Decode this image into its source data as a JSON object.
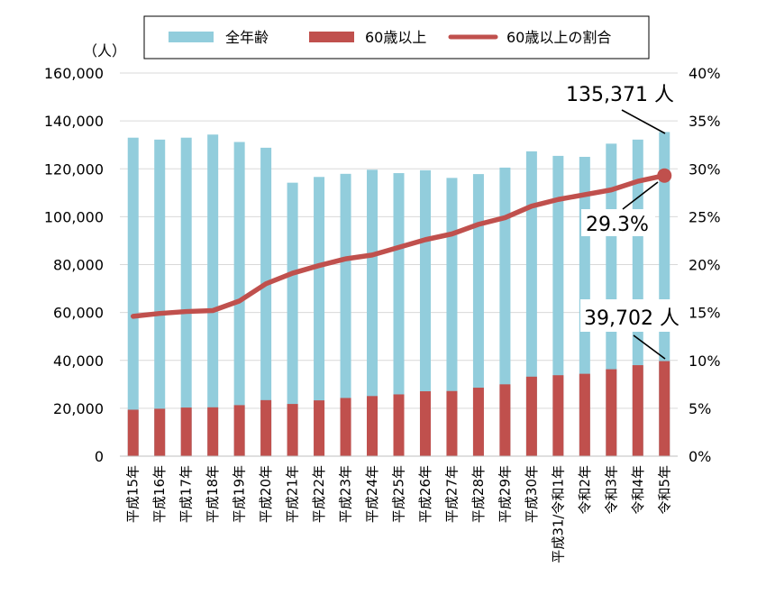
{
  "chart_data": {
    "type": "bar",
    "categories": [
      "平成15年",
      "平成16年",
      "平成17年",
      "平成18年",
      "平成19年",
      "平成20年",
      "平成21年",
      "平成22年",
      "平成23年",
      "平成24年",
      "平成25年",
      "平成26年",
      "平成27年",
      "平成28年",
      "平成29年",
      "平成30年",
      "平成31/令和1年",
      "令和2年",
      "令和3年",
      "令和4年",
      "令和5年"
    ],
    "y_unit": "（人）",
    "ylim": [
      0,
      160000
    ],
    "y_ticks": [
      "0",
      "20,000",
      "40,000",
      "60,000",
      "80,000",
      "100,000",
      "120,000",
      "140,000",
      "160,000"
    ],
    "y2lim": [
      0,
      40
    ],
    "y2_ticks": [
      "0%",
      "5%",
      "10%",
      "15%",
      "20%",
      "25%",
      "30%",
      "35%",
      "40%"
    ],
    "legend_position": "top",
    "stacked": false,
    "series": [
      {
        "name": "全年齢",
        "kind": "bar",
        "color": "#92cddc",
        "values": [
          133000,
          132200,
          133000,
          134300,
          131200,
          128800,
          114200,
          116600,
          117900,
          119600,
          118200,
          119400,
          116200,
          117800,
          120500,
          127300,
          125400,
          125000,
          130500,
          132200,
          135371
        ]
      },
      {
        "name": "60歳以上",
        "kind": "bar",
        "color": "#c0504d",
        "values": [
          19400,
          19800,
          20300,
          20400,
          21300,
          23400,
          21800,
          23300,
          24300,
          25100,
          25800,
          27100,
          27200,
          28600,
          30000,
          33200,
          33800,
          34400,
          36300,
          38000,
          39702
        ]
      },
      {
        "name": "60歳以上の割合",
        "kind": "line",
        "axis": "right",
        "color": "#c0504d",
        "values": [
          14.6,
          14.9,
          15.1,
          15.2,
          16.2,
          18.0,
          19.1,
          19.9,
          20.6,
          21.0,
          21.8,
          22.6,
          23.2,
          24.2,
          24.9,
          26.1,
          26.8,
          27.3,
          27.8,
          28.7,
          29.3
        ]
      }
    ],
    "annotations": [
      {
        "text": "135,371 人"
      },
      {
        "text": "29.3%"
      },
      {
        "text": "39,702 人"
      }
    ],
    "grid": true
  }
}
